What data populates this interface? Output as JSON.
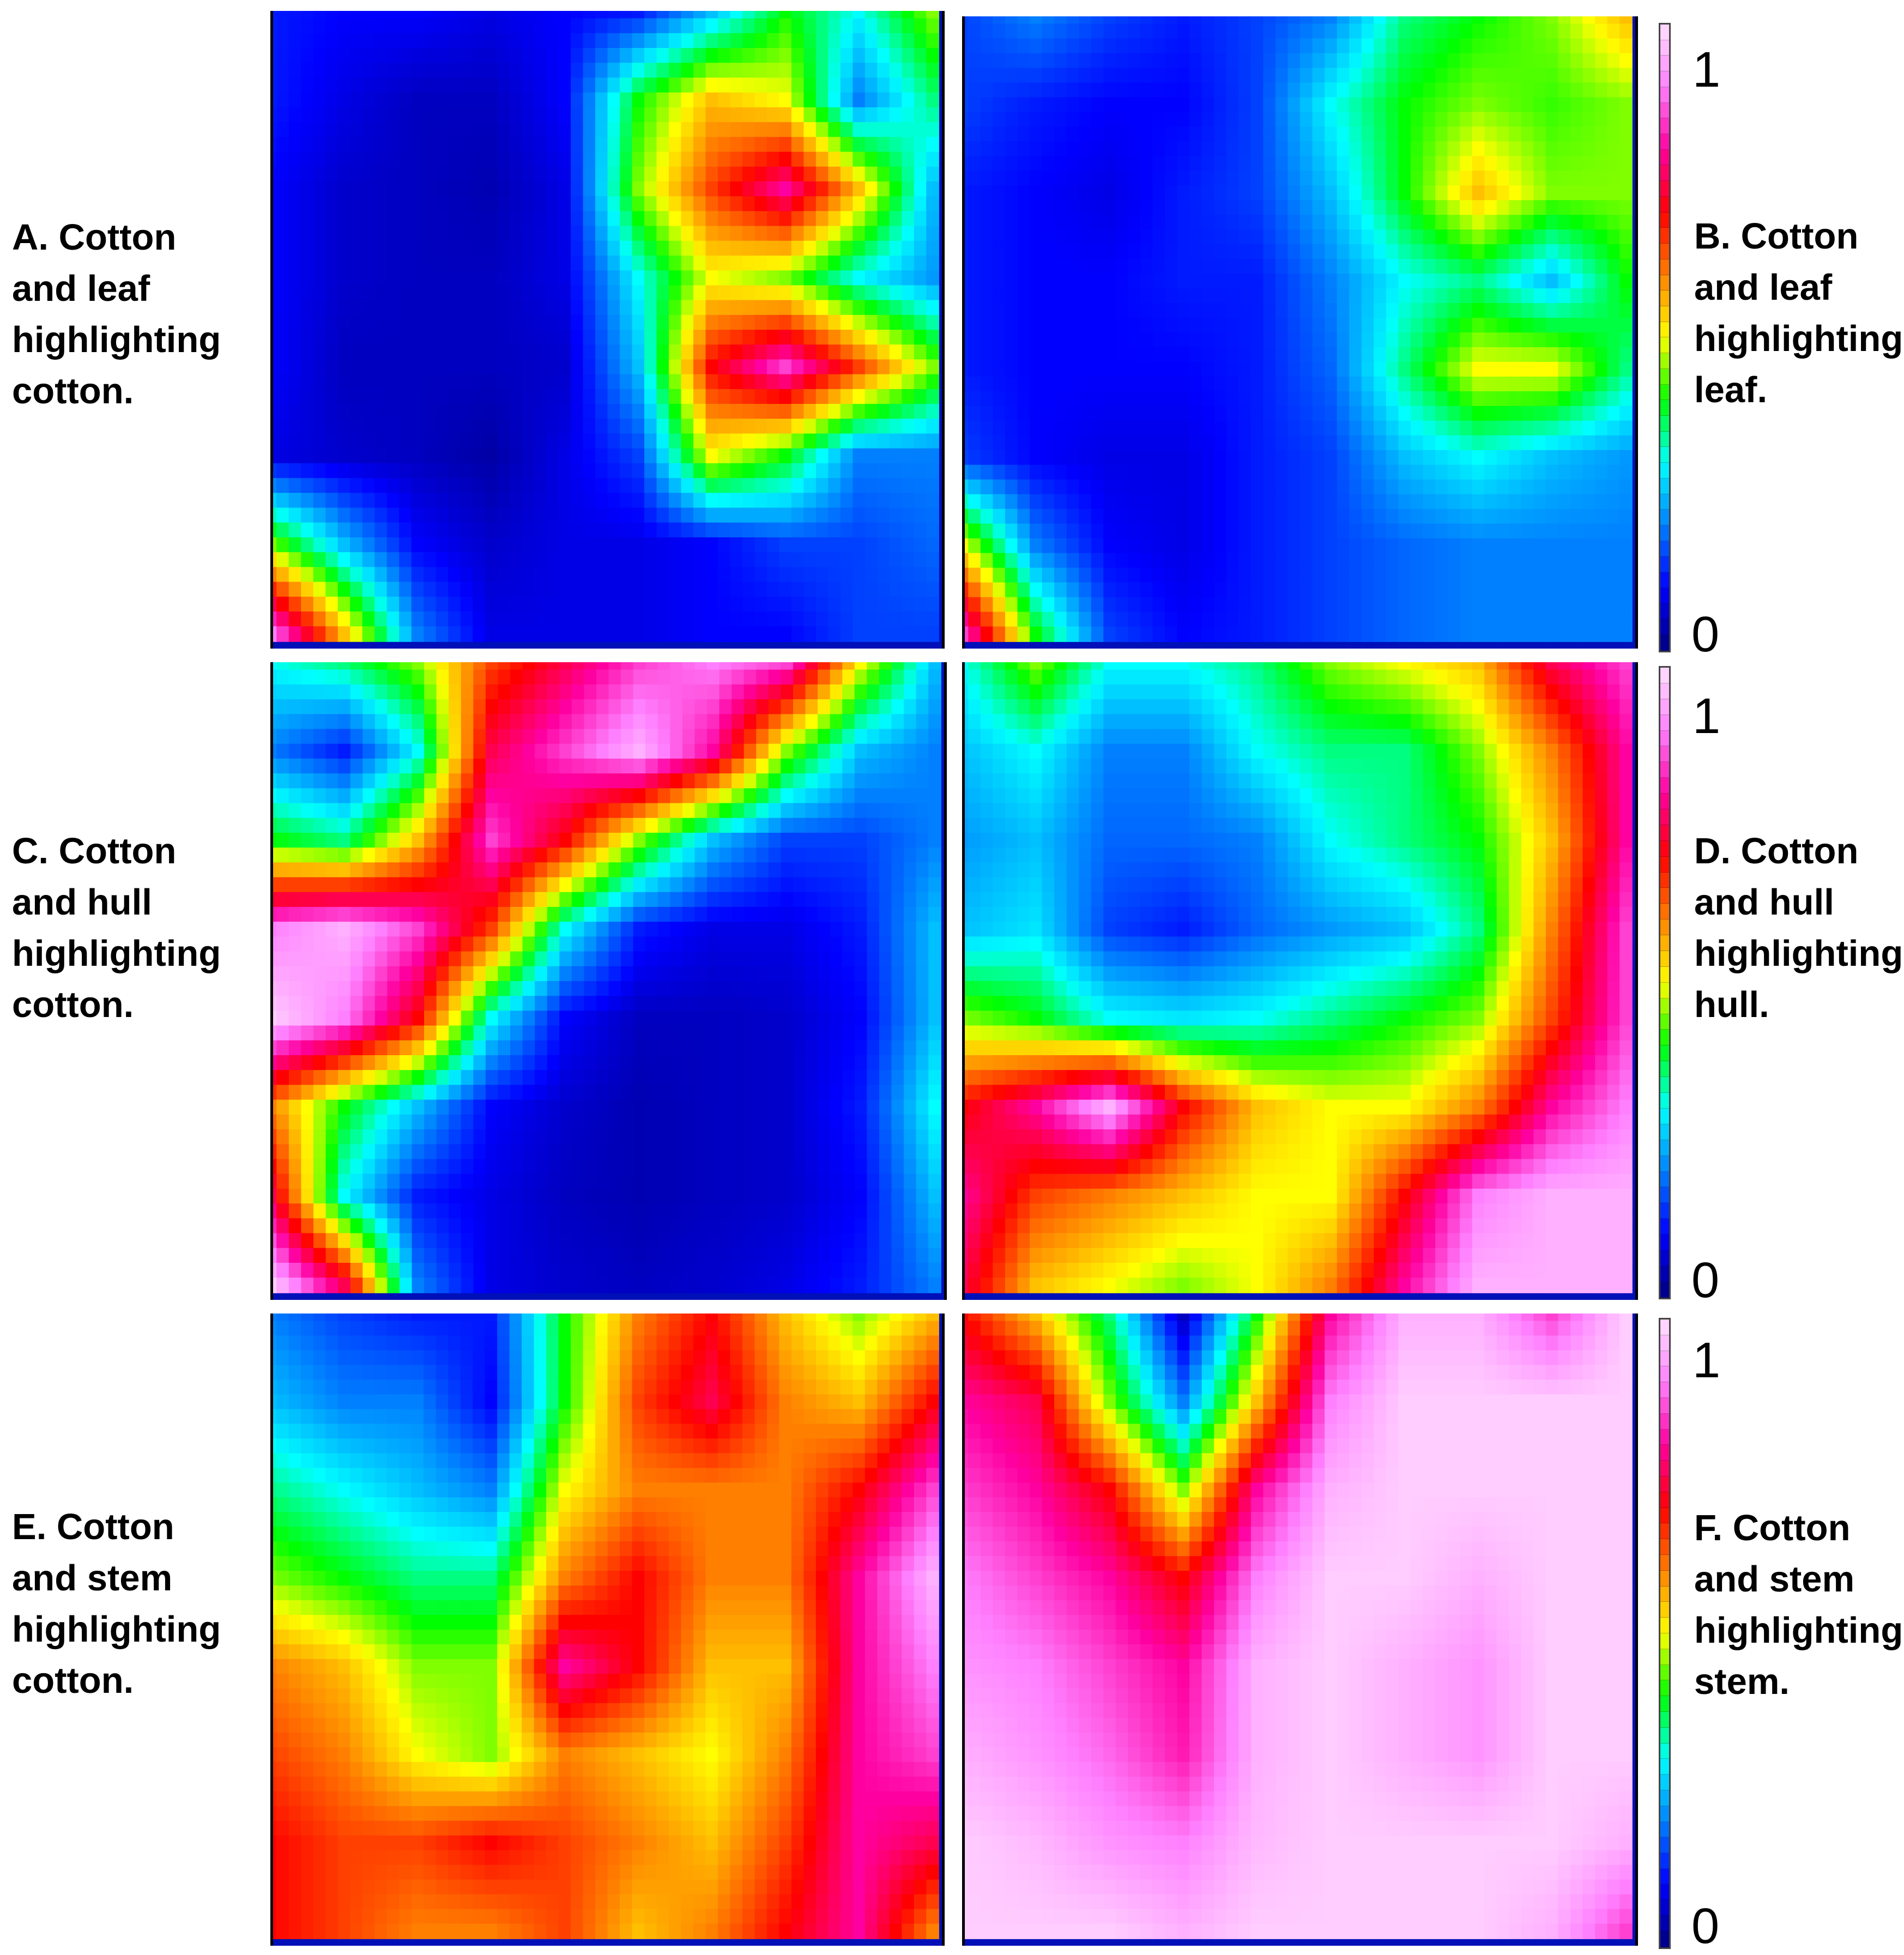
{
  "chart_data": {
    "type": "heatmap",
    "colorscale": {
      "min": 0,
      "max": 1,
      "stops": [
        "#000080",
        "#0000ff",
        "#0080ff",
        "#00ffff",
        "#00ff00",
        "#ffff00",
        "#ff8000",
        "#ff0000",
        "#ff00a0",
        "#ff80ff",
        "#ffe0ff"
      ]
    },
    "colorbars": [
      {
        "tick_max": "1",
        "tick_min": "0"
      },
      {
        "tick_max": "1",
        "tick_min": "0"
      },
      {
        "tick_max": "1",
        "tick_min": "0"
      }
    ],
    "panels": [
      {
        "label": "A. Cotton\nand leaf\nhighlighting\ncotton.",
        "grid": [
          [
            0.12,
            0.1,
            0.1,
            0.08,
            0.1,
            0.12,
            0.25,
            0.4,
            0.3,
            0.45
          ],
          [
            0.12,
            0.08,
            0.05,
            0.05,
            0.1,
            0.4,
            0.55,
            0.5,
            0.2,
            0.35
          ],
          [
            0.1,
            0.06,
            0.05,
            0.04,
            0.08,
            0.45,
            0.65,
            0.8,
            0.55,
            0.25
          ],
          [
            0.1,
            0.06,
            0.05,
            0.05,
            0.08,
            0.3,
            0.5,
            0.45,
            0.3,
            0.22
          ],
          [
            0.1,
            0.05,
            0.05,
            0.05,
            0.06,
            0.25,
            0.7,
            0.85,
            0.65,
            0.45
          ],
          [
            0.08,
            0.06,
            0.05,
            0.03,
            0.08,
            0.15,
            0.5,
            0.4,
            0.2,
            0.2
          ],
          [
            0.45,
            0.25,
            0.1,
            0.06,
            0.08,
            0.08,
            0.1,
            0.15,
            0.15,
            0.18
          ],
          [
            0.9,
            0.55,
            0.2,
            0.08,
            0.08,
            0.08,
            0.1,
            0.1,
            0.15,
            0.15
          ]
        ]
      },
      {
        "label": "B. Cotton\nand leaf\nhighlighting\nleaf.",
        "grid": [
          [
            0.15,
            0.2,
            0.15,
            0.12,
            0.15,
            0.2,
            0.35,
            0.4,
            0.45,
            0.55
          ],
          [
            0.15,
            0.12,
            0.1,
            0.1,
            0.15,
            0.3,
            0.4,
            0.45,
            0.42,
            0.45
          ],
          [
            0.12,
            0.1,
            0.08,
            0.12,
            0.15,
            0.25,
            0.4,
            0.55,
            0.45,
            0.45
          ],
          [
            0.12,
            0.1,
            0.1,
            0.12,
            0.12,
            0.2,
            0.3,
            0.35,
            0.25,
            0.4
          ],
          [
            0.12,
            0.1,
            0.1,
            0.1,
            0.12,
            0.18,
            0.35,
            0.5,
            0.5,
            0.35
          ],
          [
            0.15,
            0.1,
            0.08,
            0.08,
            0.12,
            0.15,
            0.25,
            0.3,
            0.25,
            0.22
          ],
          [
            0.5,
            0.2,
            0.1,
            0.08,
            0.12,
            0.15,
            0.18,
            0.2,
            0.2,
            0.2
          ],
          [
            0.85,
            0.4,
            0.15,
            0.1,
            0.12,
            0.15,
            0.18,
            0.2,
            0.2,
            0.2
          ]
        ]
      },
      {
        "label": "C. Cotton\nand hull\nhighlighting\ncotton.",
        "grid": [
          [
            0.3,
            0.35,
            0.45,
            0.65,
            0.75,
            0.85,
            0.9,
            0.85,
            0.5,
            0.25
          ],
          [
            0.2,
            0.12,
            0.3,
            0.75,
            0.85,
            0.95,
            0.8,
            0.45,
            0.25,
            0.2
          ],
          [
            0.4,
            0.35,
            0.55,
            0.85,
            0.7,
            0.45,
            0.25,
            0.15,
            0.15,
            0.2
          ],
          [
            0.9,
            0.95,
            0.85,
            0.65,
            0.3,
            0.12,
            0.08,
            0.08,
            0.12,
            0.25
          ],
          [
            0.98,
            0.9,
            0.7,
            0.3,
            0.1,
            0.05,
            0.05,
            0.06,
            0.1,
            0.25
          ],
          [
            0.6,
            0.4,
            0.25,
            0.1,
            0.06,
            0.04,
            0.05,
            0.06,
            0.12,
            0.3
          ],
          [
            0.75,
            0.3,
            0.12,
            0.08,
            0.05,
            0.04,
            0.05,
            0.06,
            0.1,
            0.25
          ],
          [
            0.98,
            0.75,
            0.2,
            0.08,
            0.06,
            0.05,
            0.06,
            0.08,
            0.12,
            0.2
          ]
        ]
      },
      {
        "label": "D. Cotton\nand hull\nhighlighting\nhull.",
        "grid": [
          [
            0.3,
            0.45,
            0.3,
            0.3,
            0.35,
            0.45,
            0.5,
            0.55,
            0.75,
            0.85
          ],
          [
            0.25,
            0.3,
            0.2,
            0.2,
            0.3,
            0.35,
            0.35,
            0.45,
            0.6,
            0.8
          ],
          [
            0.22,
            0.25,
            0.18,
            0.18,
            0.2,
            0.3,
            0.35,
            0.4,
            0.55,
            0.8
          ],
          [
            0.25,
            0.28,
            0.15,
            0.12,
            0.18,
            0.22,
            0.25,
            0.35,
            0.6,
            0.85
          ],
          [
            0.45,
            0.4,
            0.3,
            0.28,
            0.3,
            0.35,
            0.4,
            0.45,
            0.65,
            0.85
          ],
          [
            0.7,
            0.8,
            0.95,
            0.7,
            0.55,
            0.5,
            0.5,
            0.6,
            0.8,
            0.9
          ],
          [
            0.8,
            0.65,
            0.6,
            0.55,
            0.5,
            0.5,
            0.7,
            0.9,
            0.95,
            0.95
          ],
          [
            0.75,
            0.55,
            0.5,
            0.45,
            0.5,
            0.6,
            0.8,
            0.95,
            0.95,
            0.95
          ]
        ]
      },
      {
        "label": "E. Cotton\nand stem\nhighlighting\ncotton.",
        "grid": [
          [
            0.2,
            0.15,
            0.12,
            0.12,
            0.4,
            0.6,
            0.7,
            0.55,
            0.45,
            0.55
          ],
          [
            0.25,
            0.2,
            0.2,
            0.1,
            0.4,
            0.65,
            0.75,
            0.6,
            0.55,
            0.7
          ],
          [
            0.35,
            0.3,
            0.25,
            0.2,
            0.5,
            0.6,
            0.6,
            0.6,
            0.7,
            0.85
          ],
          [
            0.45,
            0.4,
            0.35,
            0.35,
            0.6,
            0.7,
            0.6,
            0.6,
            0.8,
            0.95
          ],
          [
            0.6,
            0.55,
            0.45,
            0.45,
            0.8,
            0.7,
            0.55,
            0.55,
            0.8,
            0.9
          ],
          [
            0.65,
            0.6,
            0.5,
            0.45,
            0.6,
            0.55,
            0.5,
            0.6,
            0.8,
            0.85
          ],
          [
            0.7,
            0.65,
            0.65,
            0.7,
            0.65,
            0.6,
            0.55,
            0.65,
            0.8,
            0.75
          ],
          [
            0.7,
            0.65,
            0.6,
            0.6,
            0.65,
            0.55,
            0.6,
            0.7,
            0.8,
            0.6
          ]
        ]
      },
      {
        "label": "F. Cotton\nand stem\nhighlighting\nstem.",
        "grid": [
          [
            0.7,
            0.55,
            0.35,
            0.05,
            0.4,
            0.8,
            0.95,
            0.95,
            0.85,
            0.98
          ],
          [
            0.8,
            0.75,
            0.45,
            0.2,
            0.55,
            0.9,
            0.98,
            0.98,
            0.98,
            0.98
          ],
          [
            0.85,
            0.8,
            0.7,
            0.45,
            0.8,
            0.95,
            0.98,
            0.98,
            0.98,
            0.98
          ],
          [
            0.9,
            0.85,
            0.8,
            0.7,
            0.9,
            0.98,
            0.98,
            0.95,
            0.98,
            0.98
          ],
          [
            0.92,
            0.9,
            0.85,
            0.8,
            0.95,
            0.98,
            0.95,
            0.92,
            0.98,
            0.98
          ],
          [
            0.95,
            0.92,
            0.88,
            0.82,
            0.95,
            0.98,
            0.95,
            0.92,
            0.98,
            0.98
          ],
          [
            0.98,
            0.96,
            0.92,
            0.9,
            0.96,
            0.98,
            0.98,
            0.98,
            0.98,
            0.95
          ],
          [
            0.98,
            0.98,
            0.98,
            0.95,
            0.98,
            0.98,
            0.98,
            0.98,
            0.95,
            0.85
          ]
        ]
      }
    ]
  }
}
